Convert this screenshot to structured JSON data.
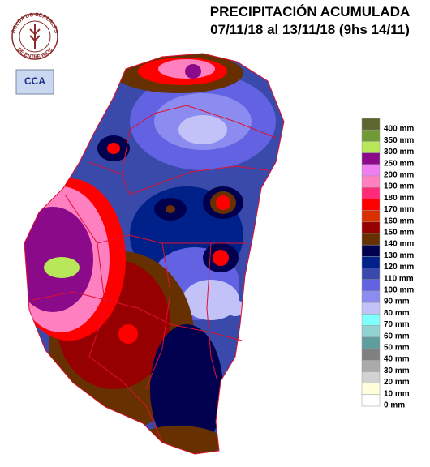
{
  "header": {
    "title": "PRECIPITACIÓN ACUMULADA",
    "subtitle": "07/11/18 al 13/11/18 (9hs 14/11)"
  },
  "logos": {
    "bolsa_top": "BOLSA DE CEREALES",
    "bolsa_bottom": "DE ENTRE RIOS",
    "cca": "CCA"
  },
  "legend": [
    {
      "label": "400 mm",
      "color": "#5e6630"
    },
    {
      "label": "350 mm",
      "color": "#6f9a36"
    },
    {
      "label": "300 mm",
      "color": "#b8e85a"
    },
    {
      "label": "250 mm",
      "color": "#8a0a8a"
    },
    {
      "label": "200 mm",
      "color": "#f07ef0"
    },
    {
      "label": "190 mm",
      "color": "#ff80c0"
    },
    {
      "label": "180 mm",
      "color": "#ff2a78"
    },
    {
      "label": "170 mm",
      "color": "#ff0000"
    },
    {
      "label": "160 mm",
      "color": "#d83000"
    },
    {
      "label": "150 mm",
      "color": "#960000"
    },
    {
      "label": "140 mm",
      "color": "#663000"
    },
    {
      "label": "130 mm",
      "color": "#00004e"
    },
    {
      "label": "120 mm",
      "color": "#00208a"
    },
    {
      "label": "110 mm",
      "color": "#3a4aaa"
    },
    {
      "label": "100 mm",
      "color": "#6262e2"
    },
    {
      "label": "90 mm",
      "color": "#8c8cf0"
    },
    {
      "label": "80 mm",
      "color": "#c2c2f8"
    },
    {
      "label": "70 mm",
      "color": "#80ffff"
    },
    {
      "label": "60 mm",
      "color": "#92d2d2"
    },
    {
      "label": "50 mm",
      "color": "#5f9e9e"
    },
    {
      "label": "40 mm",
      "color": "#808080"
    },
    {
      "label": "30 mm",
      "color": "#aaaaaa"
    },
    {
      "label": "20 mm",
      "color": "#d2d2d2"
    },
    {
      "label": "10 mm",
      "color": "#ffffdc"
    },
    {
      "label": "0 mm",
      "color": "#ffffff"
    }
  ]
}
